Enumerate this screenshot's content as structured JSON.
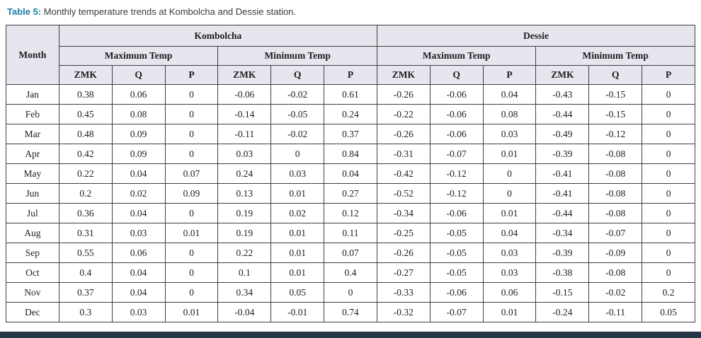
{
  "caption": {
    "label": "Table 5:",
    "text": " Monthly temperature trends at Kombolcha and Dessie station."
  },
  "colors": {
    "caption_label": "#1b7ea6",
    "header_bg": "#e6e7ee",
    "border_color": "#3f3f3f",
    "footer_bar": "#253646"
  },
  "table": {
    "corner_header": "Month",
    "station_headers": [
      "Kombolcha",
      "Dessie"
    ],
    "group_headers": [
      "Maximum Temp",
      "Minimum Temp",
      "Maximum Temp",
      "Minimum Temp"
    ],
    "sub_headers": [
      "ZMK",
      "Q",
      "P",
      "ZMK",
      "Q",
      "P",
      "ZMK",
      "Q",
      "P",
      "ZMK",
      "Q",
      "P"
    ],
    "rows": [
      {
        "month": "Jan",
        "values": [
          "0.38",
          "0.06",
          "0",
          "-0.06",
          "-0.02",
          "0.61",
          "-0.26",
          "-0.06",
          "0.04",
          "-0.43",
          "-0.15",
          "0"
        ]
      },
      {
        "month": "Feb",
        "values": [
          "0.45",
          "0.08",
          "0",
          "-0.14",
          "-0.05",
          "0.24",
          "-0.22",
          "-0.06",
          "0.08",
          "-0.44",
          "-0.15",
          "0"
        ]
      },
      {
        "month": "Mar",
        "values": [
          "0.48",
          "0.09",
          "0",
          "-0.11",
          "-0.02",
          "0.37",
          "-0.26",
          "-0.06",
          "0.03",
          "-0.49",
          "-0.12",
          "0"
        ]
      },
      {
        "month": "Apr",
        "values": [
          "0.42",
          "0.09",
          "0",
          "0.03",
          "0",
          "0.84",
          "-0.31",
          "-0.07",
          "0.01",
          "-0.39",
          "-0.08",
          "0"
        ]
      },
      {
        "month": "May",
        "values": [
          "0.22",
          "0.04",
          "0.07",
          "0.24",
          "0.03",
          "0.04",
          "-0.42",
          "-0.12",
          "0",
          "-0.41",
          "-0.08",
          "0"
        ]
      },
      {
        "month": "Jun",
        "values": [
          "0.2",
          "0.02",
          "0.09",
          "0.13",
          "0.01",
          "0.27",
          "-0.52",
          "-0.12",
          "0",
          "-0.41",
          "-0.08",
          "0"
        ]
      },
      {
        "month": "Jul",
        "values": [
          "0.36",
          "0.04",
          "0",
          "0.19",
          "0.02",
          "0.12",
          "-0.34",
          "-0.06",
          "0.01",
          "-0.44",
          "-0.08",
          "0"
        ]
      },
      {
        "month": "Aug",
        "values": [
          "0.31",
          "0.03",
          "0.01",
          "0.19",
          "0.01",
          "0.11",
          "-0.25",
          "-0.05",
          "0.04",
          "-0.34",
          "-0.07",
          "0"
        ]
      },
      {
        "month": "Sep",
        "values": [
          "0.55",
          "0.06",
          "0",
          "0.22",
          "0.01",
          "0.07",
          "-0.26",
          "-0.05",
          "0.03",
          "-0.39",
          "-0.09",
          "0"
        ]
      },
      {
        "month": "Oct",
        "values": [
          "0.4",
          "0.04",
          "0",
          "0.1",
          "0.01",
          "0.4",
          "-0.27",
          "-0.05",
          "0.03",
          "-0.38",
          "-0.08",
          "0"
        ]
      },
      {
        "month": "Nov",
        "values": [
          "0.37",
          "0.04",
          "0",
          "0.34",
          "0.05",
          "0",
          "-0.33",
          "-0.06",
          "0.06",
          "-0.15",
          "-0.02",
          "0.2"
        ]
      },
      {
        "month": "Dec",
        "values": [
          "0.3",
          "0.03",
          "0.01",
          "-0.04",
          "-0.01",
          "0.74",
          "-0.32",
          "-0.07",
          "0.01",
          "-0.24",
          "-0.11",
          "0.05"
        ]
      }
    ]
  }
}
